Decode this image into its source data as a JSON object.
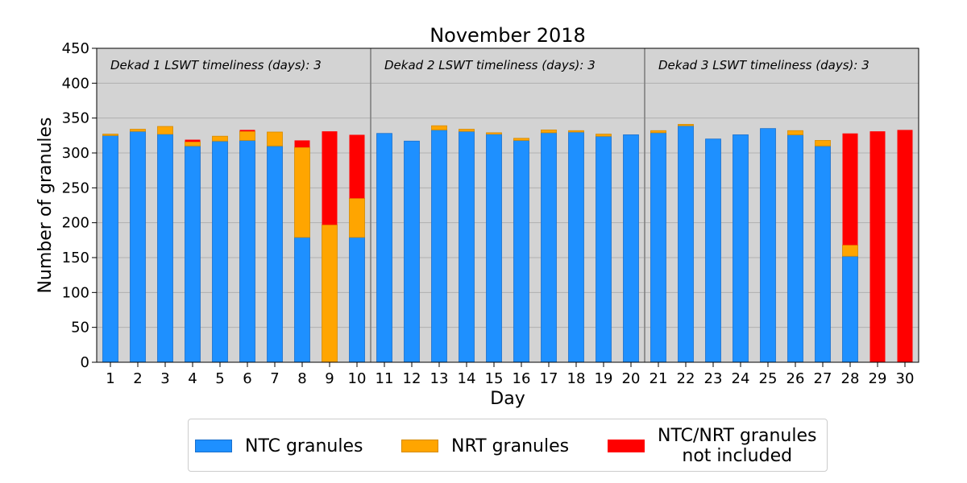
{
  "chart_data": {
    "type": "bar",
    "stacked": true,
    "title": "November 2018",
    "xlabel": "Day",
    "ylabel": "Number of granules",
    "ylim": [
      0,
      450
    ],
    "yticks": [
      0,
      50,
      100,
      150,
      200,
      250,
      300,
      350,
      400,
      450
    ],
    "grid": true,
    "legend_position": "bottom",
    "categories": [
      "1",
      "2",
      "3",
      "4",
      "5",
      "6",
      "7",
      "8",
      "9",
      "10",
      "11",
      "12",
      "13",
      "14",
      "15",
      "16",
      "17",
      "18",
      "19",
      "20",
      "21",
      "22",
      "23",
      "24",
      "25",
      "26",
      "27",
      "28",
      "29",
      "30"
    ],
    "series": [
      {
        "name": "NTC granules",
        "color": "#1e90ff",
        "values": [
          325,
          331,
          327,
          310,
          317,
          318,
          310,
          179,
          0,
          179,
          328,
          317,
          333,
          331,
          327,
          318,
          329,
          330,
          324,
          326,
          329,
          339,
          320,
          326,
          335,
          326,
          310,
          152,
          0,
          0
        ]
      },
      {
        "name": "NRT granules",
        "color": "#ffa500",
        "values": [
          2,
          3,
          11,
          6,
          7,
          13,
          20,
          129,
          197,
          56,
          0,
          0,
          6,
          3,
          2,
          3,
          4,
          2,
          3,
          0,
          3,
          2,
          0,
          0,
          0,
          6,
          8,
          16,
          0,
          0
        ]
      },
      {
        "name": "NTC/NRT granules\n  not included",
        "color": "#ff0000",
        "values": [
          0,
          0,
          0,
          3,
          0,
          2,
          0,
          10,
          134,
          91,
          0,
          0,
          0,
          0,
          0,
          0,
          0,
          0,
          0,
          0,
          0,
          0,
          0,
          0,
          0,
          0,
          0,
          160,
          331,
          333
        ]
      }
    ],
    "annotations": [
      "Dekad 1 LSWT timeliness (days): 3",
      "Dekad 2 LSWT timeliness (days): 3",
      "Dekad 3 LSWT timeliness (days): 3"
    ],
    "dividers_after_day": [
      10,
      20
    ]
  },
  "colors": {
    "plot_background": "#d3d3d3",
    "grid": "#b0b0b0",
    "divider": "#808080"
  }
}
